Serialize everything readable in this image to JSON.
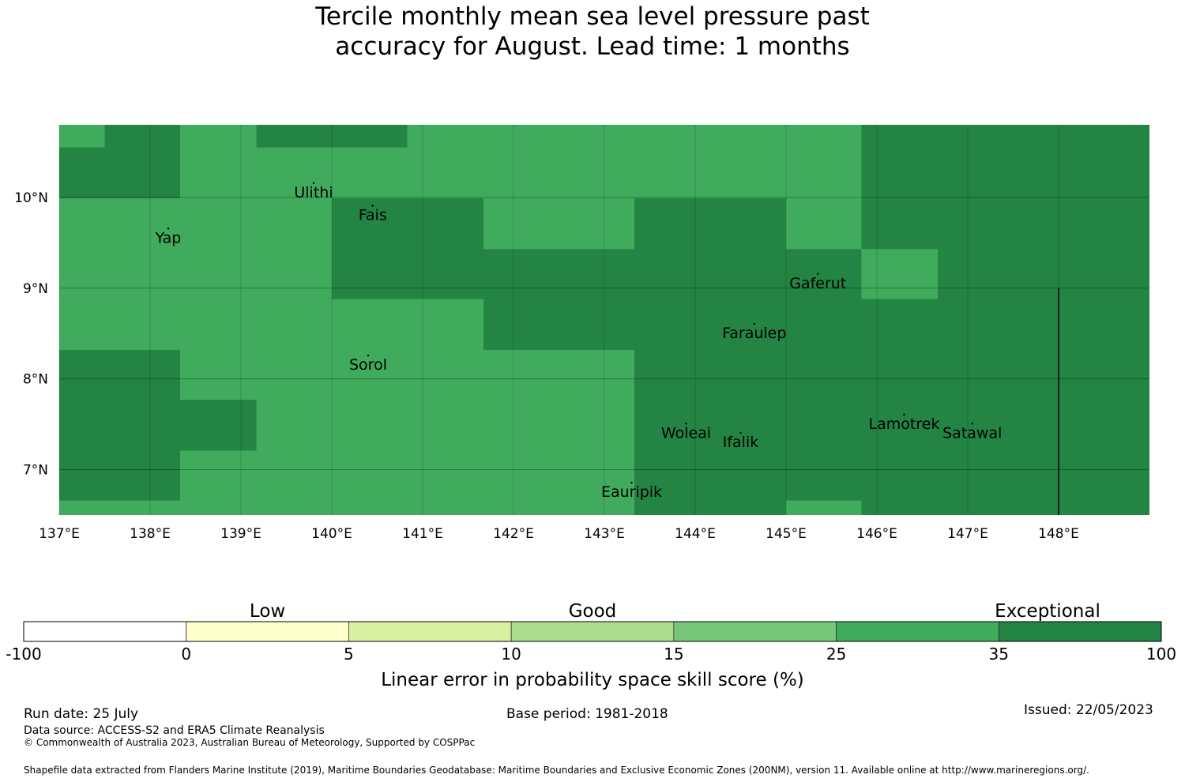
{
  "title": {
    "line1": "Tercile monthly mean sea level pressure past",
    "line2": "accuracy for August. Lead time: 1 months"
  },
  "colors": {
    "good_25_35": "#41ab5d",
    "exceptional_35_100": "#238443",
    "gridline": "#000000"
  },
  "map": {
    "extent": {
      "lon": [
        137,
        149
      ],
      "lat": [
        6.5,
        10.8
      ]
    },
    "lat_ticks": [
      {
        "value": 10,
        "label": "10°N"
      },
      {
        "value": 9,
        "label": "9°N"
      },
      {
        "value": 8,
        "label": "8°N"
      },
      {
        "value": 7,
        "label": "7°N"
      }
    ],
    "lon_ticks": [
      {
        "value": 137,
        "label": "137°E"
      },
      {
        "value": 138,
        "label": "138°E"
      },
      {
        "value": 139,
        "label": "139°E"
      },
      {
        "value": 140,
        "label": "140°E"
      },
      {
        "value": 141,
        "label": "141°E"
      },
      {
        "value": 142,
        "label": "142°E"
      },
      {
        "value": 143,
        "label": "143°E"
      },
      {
        "value": 144,
        "label": "144°E"
      },
      {
        "value": 145,
        "label": "145°E"
      },
      {
        "value": 146,
        "label": "146°E"
      },
      {
        "value": 147,
        "label": "147°E"
      },
      {
        "value": 148,
        "label": "148°E"
      }
    ],
    "islands": [
      {
        "name": "Ulithi",
        "lon": 139.8,
        "lat": 10.0
      },
      {
        "name": "Fais",
        "lon": 140.45,
        "lat": 9.75
      },
      {
        "name": "Yap",
        "lon": 138.2,
        "lat": 9.5
      },
      {
        "name": "Gaferut",
        "lon": 145.35,
        "lat": 9.0
      },
      {
        "name": "Faraulep",
        "lon": 144.65,
        "lat": 8.45
      },
      {
        "name": "Sorol",
        "lon": 140.4,
        "lat": 8.1
      },
      {
        "name": "Woleai",
        "lon": 143.9,
        "lat": 7.35
      },
      {
        "name": "Ifalik",
        "lon": 144.5,
        "lat": 7.25
      },
      {
        "name": "Lamotrek",
        "lon": 146.3,
        "lat": 7.45
      },
      {
        "name": "Satawal",
        "lon": 147.05,
        "lat": 7.35
      },
      {
        "name": "Eauripik",
        "lon": 143.3,
        "lat": 6.7
      }
    ]
  },
  "chart_data": {
    "type": "heatmap",
    "variable": "Linear error in probability space skill score (%)",
    "category_labels": [
      "Low",
      "Good",
      "Exceptional"
    ],
    "bins": [
      {
        "from": -100,
        "to": 0,
        "color": "#ffffff"
      },
      {
        "from": 0,
        "to": 5,
        "color": "#ffffcc"
      },
      {
        "from": 5,
        "to": 10,
        "color": "#d9f0a3"
      },
      {
        "from": 10,
        "to": 15,
        "color": "#addd8e"
      },
      {
        "from": 15,
        "to": 25,
        "color": "#78c679"
      },
      {
        "from": 25,
        "to": 35,
        "color": "#41ab5d"
      },
      {
        "from": 35,
        "to": 100,
        "color": "#238443"
      }
    ],
    "lon_edges": [
      137,
      137.5,
      138,
      138.33,
      138.5,
      139.17,
      140,
      140.83,
      141.67,
      142.5,
      143.33,
      144.17,
      145,
      145.83,
      146.67,
      147.5,
      149
    ],
    "lat_edges": [
      6.5,
      6.66,
      7.21,
      7.77,
      8.32,
      8.88,
      9.43,
      9.99,
      10.55,
      10.8
    ],
    "cells_exceptional": [
      {
        "lon": [
          137.5,
          138.33
        ],
        "lat": [
          10.55,
          10.8
        ]
      },
      {
        "lon": [
          137,
          138.33
        ],
        "lat": [
          9.99,
          10.55
        ]
      },
      {
        "lon": [
          139.17,
          140.83
        ],
        "lat": [
          10.55,
          10.8
        ]
      },
      {
        "lon": [
          140,
          141.67
        ],
        "lat": [
          8.88,
          9.99
        ]
      },
      {
        "lon": [
          141.67,
          143.33
        ],
        "lat": [
          8.32,
          9.43
        ]
      },
      {
        "lon": [
          143.33,
          145
        ],
        "lat": [
          6.5,
          9.99
        ]
      },
      {
        "lon": [
          145,
          145.83
        ],
        "lat": [
          6.66,
          9.43
        ]
      },
      {
        "lon": [
          144.17,
          145
        ],
        "lat": [
          6.5,
          6.66
        ]
      },
      {
        "lon": [
          145.83,
          149
        ],
        "lat": [
          6.5,
          9.43
        ]
      },
      {
        "lon": [
          145.83,
          149
        ],
        "lat": [
          9.99,
          10.8
        ]
      },
      {
        "lon": [
          146.67,
          149
        ],
        "lat": [
          9.43,
          9.99
        ]
      },
      {
        "lon": [
          145.83,
          146.67
        ],
        "lat": [
          9.43,
          9.99
        ]
      },
      {
        "lon": [
          137,
          138.33
        ],
        "lat": [
          6.66,
          8.32
        ]
      },
      {
        "lon": [
          138.33,
          139.17
        ],
        "lat": [
          7.21,
          7.77
        ]
      }
    ],
    "cells_good_in_exceptional": [
      {
        "lon": [
          145.83,
          146.67
        ],
        "lat": [
          8.88,
          9.43
        ]
      }
    ],
    "ticks": [
      {
        "value": -100,
        "label": "-100"
      },
      {
        "value": 0,
        "label": "0"
      },
      {
        "value": 5,
        "label": "5"
      },
      {
        "value": 10,
        "label": "10"
      },
      {
        "value": 15,
        "label": "15"
      },
      {
        "value": 25,
        "label": "25"
      },
      {
        "value": 35,
        "label": "35"
      },
      {
        "value": 100,
        "label": "100"
      }
    ]
  },
  "footer": {
    "run_date": "Run date: 25 July",
    "base_period": "Base period: 1981-2018",
    "issued": "Issued: 22/05/2023",
    "data_source": "Data source: ACCESS-S2 and ERA5 Climate Reanalysis",
    "copyright": "© Commonwealth of Australia 2023, Australian Bureau of Meteorology, Supported by COSPPac",
    "shapefile": "Shapefile data extracted from Flanders Marine Institute (2019), Maritime Boundaries Geodatabase: Maritime Boundaries and Exclusive Economic Zones (200NM), version 11. Available online at http://www.marineregions.org/."
  }
}
